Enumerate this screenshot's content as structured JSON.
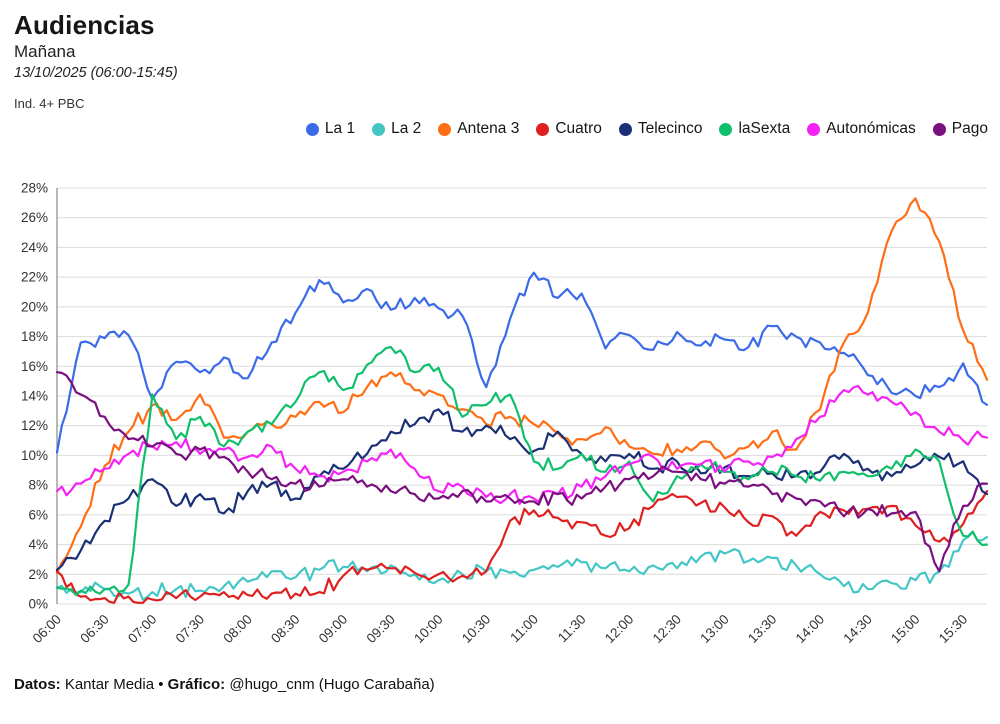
{
  "header": {
    "title": "Audiencias",
    "subtitle": "Mañana",
    "date_range": "13/10/2025 (06:00-15:45)",
    "universe_note": "Ind. 4+ PBC"
  },
  "footer": {
    "datos_label": "Datos:",
    "datos_value": " Kantar Media ",
    "separator": "• ",
    "grafico_label": "Gráfico:",
    "grafico_value": " @hugo_cnm (Hugo Carabaña)"
  },
  "chart_data": {
    "type": "line",
    "title": "Audiencias",
    "subtitle": "Mañana",
    "xlabel": "",
    "ylabel": "",
    "y_unit": "%",
    "ylim": [
      0,
      28
    ],
    "grid": true,
    "legend_position": "top",
    "yticks": [
      "0%",
      "2%",
      "4%",
      "6%",
      "8%",
      "10%",
      "12%",
      "14%",
      "16%",
      "18%",
      "20%",
      "22%",
      "24%",
      "26%",
      "28%"
    ],
    "xticks": [
      "06:00",
      "06:30",
      "07:00",
      "07:30",
      "08:00",
      "08:30",
      "09:00",
      "09:30",
      "10:00",
      "10:30",
      "11:00",
      "11:30",
      "12:00",
      "12:30",
      "13:00",
      "13:30",
      "14:00",
      "14:30",
      "15:00",
      "15:30"
    ],
    "x": [
      "06:00",
      "06:15",
      "06:30",
      "06:45",
      "07:00",
      "07:15",
      "07:30",
      "07:45",
      "08:00",
      "08:15",
      "08:30",
      "08:45",
      "09:00",
      "09:15",
      "09:30",
      "09:45",
      "10:00",
      "10:15",
      "10:30",
      "10:45",
      "11:00",
      "11:15",
      "11:30",
      "11:45",
      "12:00",
      "12:15",
      "12:30",
      "12:45",
      "13:00",
      "13:15",
      "13:30",
      "13:45",
      "14:00",
      "14:15",
      "14:30",
      "14:45",
      "15:00",
      "15:15",
      "15:30",
      "15:45"
    ],
    "series": [
      {
        "name": "La 1",
        "color": "#3b6be8",
        "values": [
          10.2,
          17.6,
          17.9,
          18.1,
          13.8,
          16.3,
          15.6,
          16.6,
          15.2,
          17.6,
          19.6,
          21.8,
          20.3,
          21.2,
          19.8,
          20.6,
          19.9,
          19.4,
          14.6,
          19.2,
          22.3,
          20.6,
          20.9,
          17.2,
          18.1,
          17.1,
          18.3,
          17.4,
          17.8,
          17.3,
          18.7,
          18.0,
          17.6,
          16.9,
          15.4,
          14.2,
          14.0,
          14.6,
          16.2,
          13.4
        ]
      },
      {
        "name": "La 2",
        "color": "#44c6c6",
        "values": [
          1.1,
          0.8,
          1.0,
          0.7,
          0.8,
          1.0,
          0.9,
          1.2,
          1.5,
          2.2,
          1.8,
          2.3,
          2.5,
          2.2,
          2.6,
          2.0,
          1.6,
          2.0,
          2.2,
          2.1,
          2.3,
          2.5,
          2.8,
          2.4,
          2.2,
          2.6,
          2.4,
          3.2,
          3.4,
          2.9,
          3.1,
          2.6,
          2.0,
          1.2,
          1.0,
          1.4,
          1.6,
          2.2,
          4.3,
          4.5
        ]
      },
      {
        "name": "Antena 3",
        "color": "#ff6d14",
        "values": [
          2.1,
          5.2,
          9.3,
          11.6,
          13.4,
          12.4,
          14.1,
          11.2,
          11.6,
          12.1,
          12.6,
          13.6,
          12.9,
          14.6,
          15.6,
          14.4,
          14.1,
          13.1,
          12.1,
          12.6,
          12.1,
          11.5,
          11.1,
          11.9,
          10.6,
          10.1,
          10.4,
          10.9,
          9.8,
          10.6,
          11.6,
          10.4,
          13.1,
          17.6,
          19.6,
          25.1,
          27.3,
          24.4,
          18.4,
          15.1
        ]
      },
      {
        "name": "Cuatro",
        "color": "#df2020",
        "values": [
          2.2,
          0.5,
          0.4,
          0.5,
          0.3,
          0.4,
          0.5,
          0.8,
          0.6,
          0.7,
          0.7,
          0.8,
          1.9,
          2.3,
          2.4,
          2.1,
          2.0,
          1.9,
          2.2,
          5.6,
          6.3,
          5.8,
          5.5,
          4.6,
          5.1,
          6.6,
          7.2,
          6.8,
          6.5,
          5.5,
          5.9,
          4.6,
          6.2,
          6.3,
          6.4,
          6.6,
          5.3,
          4.2,
          5.4,
          7.6
        ]
      },
      {
        "name": "Telecinco",
        "color": "#1b3076",
        "values": [
          2.3,
          3.6,
          5.6,
          7.1,
          8.4,
          6.6,
          7.4,
          6.1,
          7.6,
          8.1,
          7.1,
          8.6,
          9.1,
          10.1,
          11.6,
          12.1,
          13.1,
          11.6,
          12.0,
          11.1,
          10.3,
          11.6,
          10.1,
          9.6,
          10.1,
          9.1,
          9.6,
          8.8,
          9.2,
          8.6,
          8.8,
          8.6,
          8.9,
          10.1,
          9.1,
          8.6,
          9.3,
          9.9,
          9.6,
          7.4
        ]
      },
      {
        "name": "laSexta",
        "color": "#10bf6b",
        "values": [
          1.1,
          0.9,
          1.0,
          1.3,
          14.1,
          11.1,
          12.6,
          10.6,
          11.6,
          12.1,
          13.6,
          15.6,
          14.4,
          16.1,
          17.3,
          15.6,
          15.9,
          12.6,
          13.4,
          14.1,
          9.6,
          9.1,
          10.1,
          8.9,
          9.6,
          6.9,
          8.6,
          9.4,
          8.9,
          8.4,
          8.9,
          8.6,
          8.3,
          8.9,
          8.6,
          9.1,
          10.4,
          9.6,
          4.6,
          4.0
        ]
      },
      {
        "name": "Autonómicas",
        "color": "#f522f5",
        "values": [
          7.6,
          8.1,
          9.1,
          10.1,
          10.6,
          10.9,
          10.1,
          10.4,
          9.9,
          10.6,
          9.1,
          8.6,
          8.9,
          9.6,
          10.4,
          9.1,
          7.6,
          7.9,
          7.2,
          7.4,
          7.1,
          7.4,
          7.9,
          8.6,
          9.4,
          9.9,
          9.1,
          9.4,
          8.9,
          9.6,
          9.9,
          11.1,
          12.6,
          14.4,
          14.1,
          13.6,
          12.9,
          11.6,
          11.0,
          11.2
        ]
      },
      {
        "name": "Pago",
        "color": "#7a0f7f",
        "values": [
          15.6,
          14.1,
          12.6,
          11.1,
          10.6,
          10.1,
          10.4,
          9.9,
          8.9,
          8.4,
          8.1,
          7.9,
          8.4,
          7.9,
          7.6,
          7.4,
          7.1,
          7.6,
          6.9,
          7.1,
          6.9,
          7.4,
          7.1,
          7.9,
          8.4,
          8.6,
          8.9,
          8.4,
          8.1,
          7.9,
          7.4,
          7.1,
          6.9,
          5.9,
          6.4,
          6.1,
          6.2,
          2.2,
          6.6,
          8.1
        ]
      }
    ]
  }
}
